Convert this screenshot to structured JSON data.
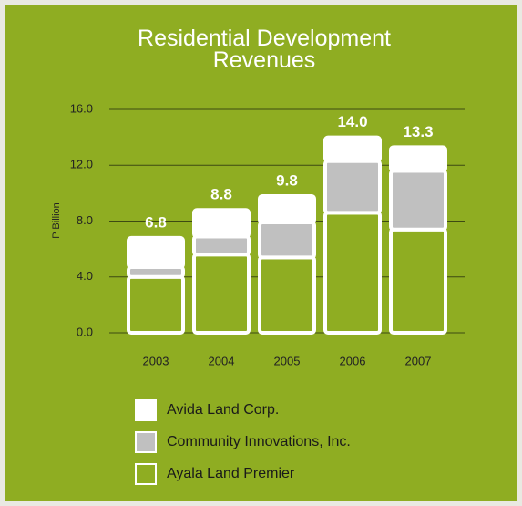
{
  "chart_data": {
    "type": "stacked_bar",
    "title": "Residential Development Revenues",
    "ylabel": "P Billion",
    "categories": [
      "2003",
      "2004",
      "2005",
      "2006",
      "2007"
    ],
    "series": [
      {
        "name": "Avida Land Corp.",
        "color": "#ffffff",
        "values": [
          2.1,
          1.9,
          1.9,
          1.7,
          1.7
        ]
      },
      {
        "name": "Community Innovations, Inc.",
        "color": "#c0c0c0",
        "values": [
          0.7,
          1.3,
          2.5,
          3.7,
          4.2
        ]
      },
      {
        "name": "Ayala Land Premier",
        "color": "#8fad22",
        "values": [
          4.0,
          5.6,
          5.4,
          8.6,
          7.4
        ]
      }
    ],
    "totals": [
      6.8,
      8.8,
      9.8,
      14,
      13.3
    ],
    "total_labels": [
      "6.8",
      "8.8",
      "9.8",
      "14.0",
      "13.3"
    ],
    "ylim": [
      0,
      16
    ],
    "yticks": [
      {
        "value": 0,
        "label": "0.0"
      },
      {
        "value": 4,
        "label": "4.0"
      },
      {
        "value": 8,
        "label": "8.0"
      },
      {
        "value": 12,
        "label": "12.0"
      },
      {
        "value": 16,
        "label": "16.0"
      }
    ],
    "grid": true
  }
}
